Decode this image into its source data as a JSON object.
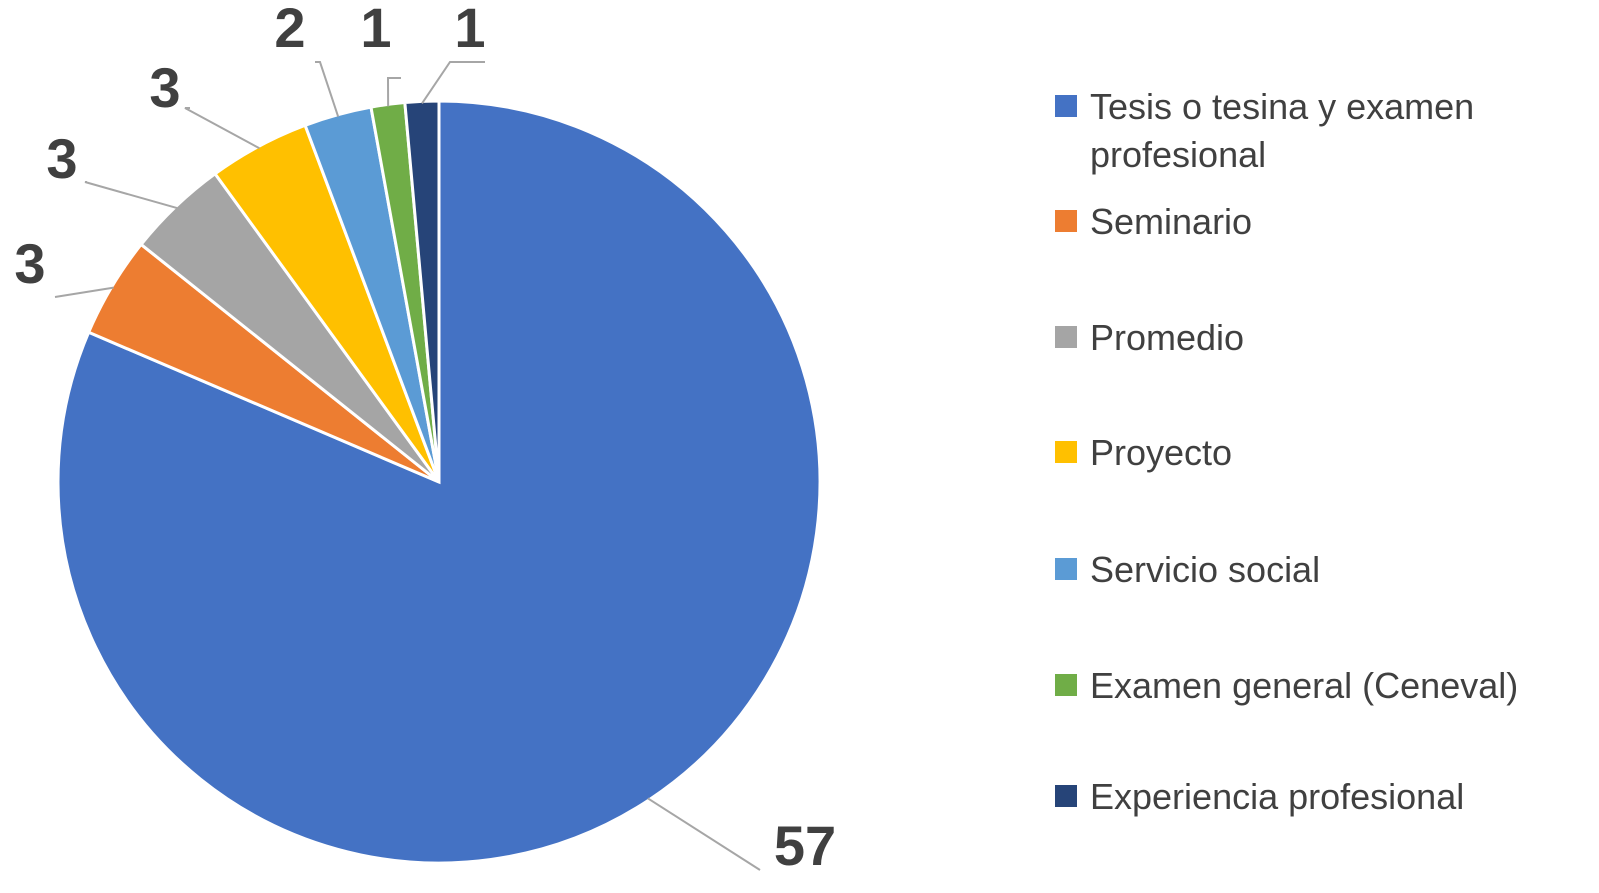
{
  "chart_data": {
    "type": "pie",
    "categories": [
      "Tesis o tesina y examen profesional",
      "Seminario",
      "Promedio",
      "Proyecto",
      "Servicio social",
      "Examen general (Ceneval)",
      "Experiencia profesional"
    ],
    "values": [
      57,
      3,
      3,
      3,
      2,
      1,
      1
    ],
    "colors": [
      "#4472c4",
      "#ed7d31",
      "#a5a5a5",
      "#ffc000",
      "#5b9bd5",
      "#70ad47",
      "#264478"
    ],
    "legend": "right"
  }
}
